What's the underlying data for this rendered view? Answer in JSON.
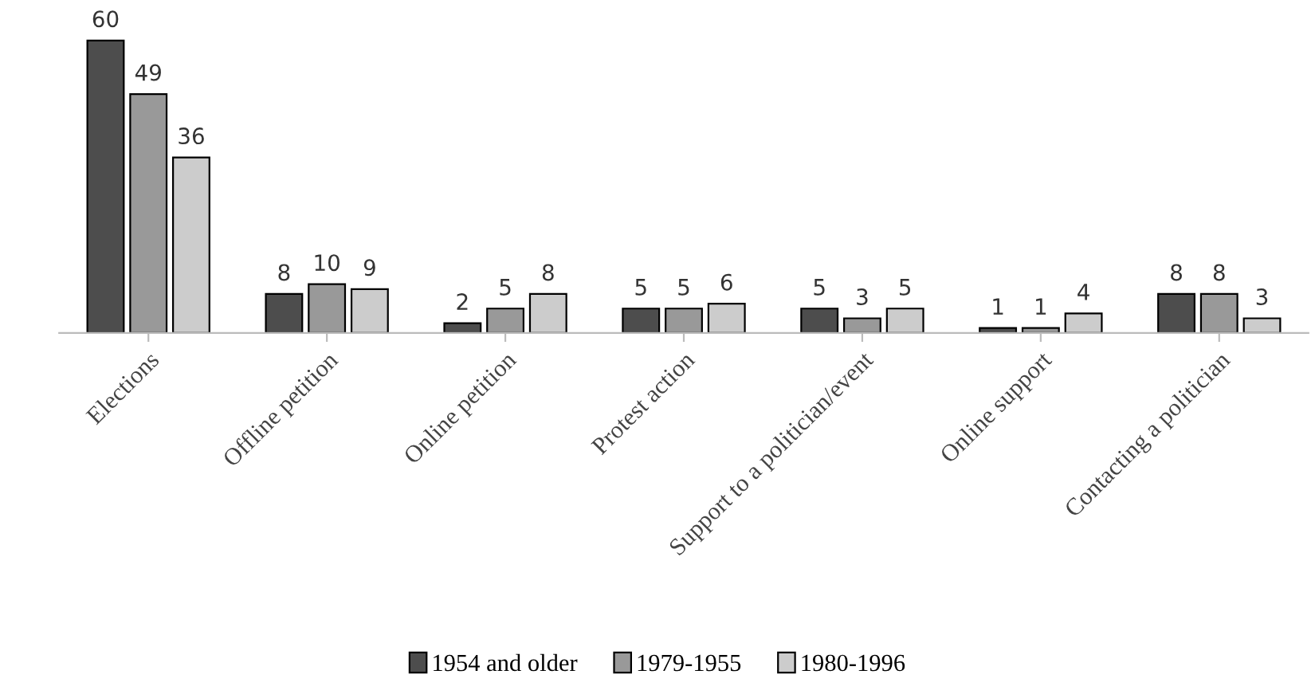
{
  "chart_data": {
    "type": "bar",
    "categories": [
      "Elections",
      "Offline petition",
      "Online petition",
      "Protest action",
      "Support to a politician/event",
      "Online support",
      "Contacting a politician"
    ],
    "series": [
      {
        "name": "1954 and older",
        "color": "#4d4d4d",
        "values": [
          60,
          8,
          2,
          5,
          5,
          1,
          8
        ]
      },
      {
        "name": "1979-1955",
        "color": "#999999",
        "values": [
          49,
          10,
          5,
          5,
          3,
          1,
          8
        ]
      },
      {
        "name": "1980-1996",
        "color": "#cccccc",
        "values": [
          36,
          9,
          8,
          6,
          5,
          4,
          3
        ]
      }
    ],
    "data_labels": true,
    "legend": "bottom",
    "grid": false
  }
}
